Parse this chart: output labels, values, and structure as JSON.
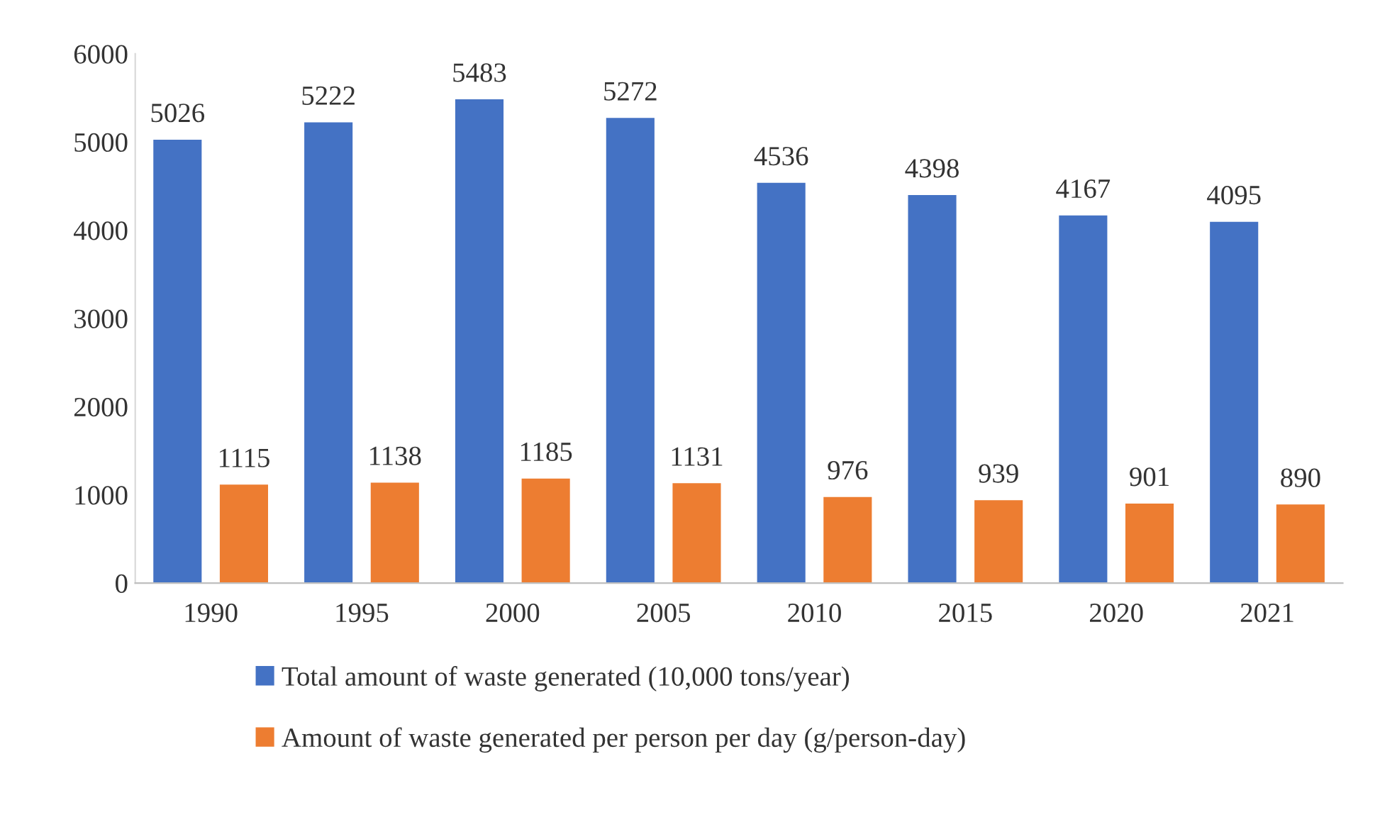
{
  "chart_data": {
    "type": "bar",
    "categories": [
      "1990",
      "1995",
      "2000",
      "2005",
      "2010",
      "2015",
      "2020",
      "2021"
    ],
    "series": [
      {
        "name": "Total amount of waste generated (10,000 tons/year)",
        "color": "#4472c4",
        "values": [
          5026,
          5222,
          5483,
          5272,
          4536,
          4398,
          4167,
          4095
        ]
      },
      {
        "name": "Amount of waste generated per person per day (g/person-day)",
        "color": "#ed7d31",
        "values": [
          1115,
          1138,
          1185,
          1131,
          976,
          939,
          901,
          890
        ]
      }
    ],
    "ylim": [
      0,
      6000
    ],
    "yticks": [
      0,
      1000,
      2000,
      3000,
      4000,
      5000,
      6000
    ],
    "grid": false,
    "legend": "bottom",
    "data_labels": true
  }
}
